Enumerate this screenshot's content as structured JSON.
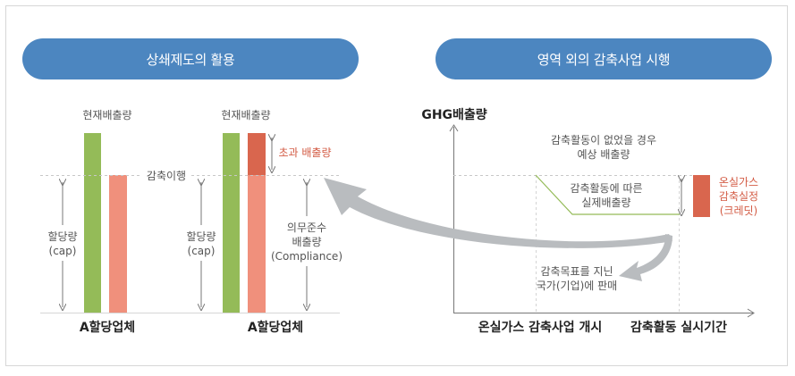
{
  "left_panel": {
    "title": "상쇄제도의 활용",
    "current_emission_1": "현재배출량",
    "current_emission_2": "현재배출량",
    "reduction_target": "감축이행",
    "allocation_1": "할당량\n(cap)",
    "allocation_2": "할당량\n(cap)",
    "excess_emission": "초과 배출량",
    "compliance_emission": "의무준수\n배출량\n(Compliance)",
    "company_1": "A할당업체",
    "company_2": "A할당업체"
  },
  "right_panel": {
    "title": "영역 외의 감축사업 시행",
    "y_axis_label": "GHG배출량",
    "expected_emission": "감축활동이 없었을  경우\n예상 배출량",
    "actual_emission": "감축활동에 따른\n실제배출량",
    "credit": "온실가스\n감축실정\n(크레딧)",
    "sale_note": "감축목표를 지닌\n국가(기업)에 판매",
    "x_label_start": "온실가스 감축사업 개시",
    "x_label_period": "감축활동 실시기간"
  },
  "colors": {
    "pill": "#4c86c0",
    "green": "#94bb58",
    "salmon": "#f0907c",
    "red": "#d9664e",
    "arrow_gray": "#b9bcbf"
  }
}
